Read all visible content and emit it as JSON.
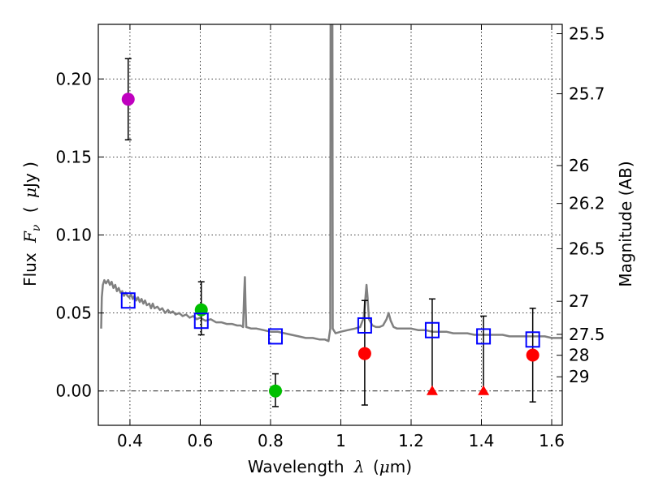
{
  "chart_data": {
    "type": "scatter",
    "xlabel_prefix": "Wavelength",
    "xlabel_symbol": "λ",
    "xlabel_unit_open": "(",
    "xlabel_unit_mu": "μ",
    "xlabel_unit_rest": "m)",
    "ylabel_prefix": "Flux",
    "ylabel_symbol": "F",
    "ylabel_subscript": "ν",
    "ylabel_unit_open": "(",
    "ylabel_unit_mu": "μ",
    "ylabel_unit_rest": "Jy )",
    "y2label": "Magnitude (AB)",
    "xlim": [
      0.31,
      1.63
    ],
    "ylim": [
      -0.022,
      0.235
    ],
    "xticks": [
      0.4,
      0.6,
      0.8,
      1.0,
      1.2,
      1.4,
      1.6
    ],
    "xtick_labels": [
      "0.4",
      "0.6",
      "0.8",
      "1",
      "1.2",
      "1.4",
      "1.6"
    ],
    "yticks": [
      0.0,
      0.05,
      0.1,
      0.15,
      0.2
    ],
    "ytick_labels": [
      "0.00",
      "0.05",
      "0.10",
      "0.15",
      "0.20"
    ],
    "y2ticks": [
      {
        "label": "25.5",
        "flux": 0.229
      },
      {
        "label": "25.7",
        "flux": 0.1905
      },
      {
        "label": "26",
        "flux": 0.1445
      },
      {
        "label": "26.2",
        "flux": 0.1202
      },
      {
        "label": "26.5",
        "flux": 0.0912
      },
      {
        "label": "27",
        "flux": 0.0575
      },
      {
        "label": "27.5",
        "flux": 0.0363
      },
      {
        "label": "28",
        "flux": 0.0229
      },
      {
        "label": "29",
        "flux": 0.0091
      }
    ],
    "model_spectrum": {
      "color": "#808080",
      "points": [
        [
          0.318,
          0.04
        ],
        [
          0.32,
          0.06
        ],
        [
          0.323,
          0.068
        ],
        [
          0.327,
          0.071
        ],
        [
          0.332,
          0.069
        ],
        [
          0.338,
          0.071
        ],
        [
          0.343,
          0.068
        ],
        [
          0.348,
          0.07
        ],
        [
          0.353,
          0.066
        ],
        [
          0.358,
          0.068
        ],
        [
          0.363,
          0.064
        ],
        [
          0.368,
          0.066
        ],
        [
          0.373,
          0.063
        ],
        [
          0.378,
          0.064
        ],
        [
          0.383,
          0.061
        ],
        [
          0.388,
          0.063
        ],
        [
          0.393,
          0.061
        ],
        [
          0.398,
          0.06
        ],
        [
          0.403,
          0.062
        ],
        [
          0.408,
          0.059
        ],
        [
          0.413,
          0.061
        ],
        [
          0.418,
          0.058
        ],
        [
          0.423,
          0.06
        ],
        [
          0.428,
          0.057
        ],
        [
          0.433,
          0.059
        ],
        [
          0.438,
          0.056
        ],
        [
          0.443,
          0.058
        ],
        [
          0.448,
          0.055
        ],
        [
          0.455,
          0.056
        ],
        [
          0.46,
          0.053
        ],
        [
          0.465,
          0.056
        ],
        [
          0.47,
          0.053
        ],
        [
          0.478,
          0.054
        ],
        [
          0.485,
          0.052
        ],
        [
          0.492,
          0.053
        ],
        [
          0.5,
          0.05
        ],
        [
          0.508,
          0.052
        ],
        [
          0.515,
          0.05
        ],
        [
          0.522,
          0.051
        ],
        [
          0.53,
          0.049
        ],
        [
          0.54,
          0.05
        ],
        [
          0.55,
          0.048
        ],
        [
          0.56,
          0.049
        ],
        [
          0.57,
          0.047
        ],
        [
          0.58,
          0.048
        ],
        [
          0.59,
          0.046
        ],
        [
          0.6,
          0.047
        ],
        [
          0.615,
          0.045
        ],
        [
          0.63,
          0.046
        ],
        [
          0.645,
          0.044
        ],
        [
          0.66,
          0.044
        ],
        [
          0.675,
          0.043
        ],
        [
          0.69,
          0.043
        ],
        [
          0.705,
          0.042
        ],
        [
          0.715,
          0.042
        ],
        [
          0.722,
          0.041
        ],
        [
          0.725,
          0.062
        ],
        [
          0.727,
          0.073
        ],
        [
          0.729,
          0.055
        ],
        [
          0.731,
          0.041
        ],
        [
          0.745,
          0.04
        ],
        [
          0.76,
          0.04
        ],
        [
          0.78,
          0.039
        ],
        [
          0.8,
          0.038
        ],
        [
          0.82,
          0.038
        ],
        [
          0.84,
          0.037
        ],
        [
          0.86,
          0.036
        ],
        [
          0.88,
          0.035
        ],
        [
          0.9,
          0.034
        ],
        [
          0.92,
          0.034
        ],
        [
          0.94,
          0.033
        ],
        [
          0.955,
          0.033
        ],
        [
          0.965,
          0.032
        ],
        [
          0.97,
          0.04
        ],
        [
          0.971,
          0.24
        ],
        [
          0.976,
          0.24
        ],
        [
          0.977,
          0.04
        ],
        [
          0.985,
          0.037
        ],
        [
          1.0,
          0.038
        ],
        [
          1.02,
          0.039
        ],
        [
          1.04,
          0.04
        ],
        [
          1.055,
          0.041
        ],
        [
          1.065,
          0.047
        ],
        [
          1.07,
          0.06
        ],
        [
          1.073,
          0.068
        ],
        [
          1.076,
          0.06
        ],
        [
          1.08,
          0.046
        ],
        [
          1.09,
          0.042
        ],
        [
          1.1,
          0.041
        ],
        [
          1.11,
          0.041
        ],
        [
          1.12,
          0.042
        ],
        [
          1.13,
          0.046
        ],
        [
          1.136,
          0.05
        ],
        [
          1.142,
          0.045
        ],
        [
          1.15,
          0.041
        ],
        [
          1.16,
          0.04
        ],
        [
          1.18,
          0.04
        ],
        [
          1.2,
          0.04
        ],
        [
          1.22,
          0.039
        ],
        [
          1.24,
          0.039
        ],
        [
          1.26,
          0.038
        ],
        [
          1.28,
          0.038
        ],
        [
          1.3,
          0.038
        ],
        [
          1.32,
          0.037
        ],
        [
          1.34,
          0.037
        ],
        [
          1.36,
          0.037
        ],
        [
          1.38,
          0.036
        ],
        [
          1.4,
          0.036
        ],
        [
          1.42,
          0.036
        ],
        [
          1.44,
          0.036
        ],
        [
          1.46,
          0.036
        ],
        [
          1.48,
          0.035
        ],
        [
          1.5,
          0.035
        ],
        [
          1.52,
          0.035
        ],
        [
          1.54,
          0.035
        ],
        [
          1.56,
          0.035
        ],
        [
          1.58,
          0.035
        ],
        [
          1.6,
          0.034
        ],
        [
          1.62,
          0.034
        ],
        [
          1.63,
          0.034
        ]
      ]
    },
    "series": [
      {
        "name": "observed-violet",
        "marker": "circle",
        "color": "#bf00bf",
        "points": [
          {
            "x": 0.395,
            "y": 0.187,
            "yerr_low": 0.161,
            "yerr_high": 0.213
          }
        ]
      },
      {
        "name": "observed-green",
        "marker": "circle",
        "color": "#00bf00",
        "points": [
          {
            "x": 0.603,
            "y": 0.052,
            "yerr_low": 0.036,
            "yerr_high": 0.07
          },
          {
            "x": 0.814,
            "y": 0.0,
            "yerr_low": -0.01,
            "yerr_high": 0.011
          }
        ]
      },
      {
        "name": "observed-red",
        "marker": "circle",
        "color": "#ff0000",
        "points": [
          {
            "x": 1.068,
            "y": 0.024,
            "yerr_low": -0.009,
            "yerr_high": 0.058
          },
          {
            "x": 1.546,
            "y": 0.023,
            "yerr_low": -0.007,
            "yerr_high": 0.053
          }
        ]
      },
      {
        "name": "upper-limit-red",
        "marker": "triangle",
        "color": "#ff0000",
        "points": [
          {
            "x": 1.26,
            "y": 0.0,
            "yerr_low": 0.0,
            "yerr_high": 0.059
          },
          {
            "x": 1.406,
            "y": 0.0,
            "yerr_low": 0.0,
            "yerr_high": 0.048
          }
        ]
      },
      {
        "name": "model-photometry",
        "marker": "square-open",
        "color": "#0000ff",
        "points": [
          {
            "x": 0.395,
            "y": 0.058
          },
          {
            "x": 0.603,
            "y": 0.045
          },
          {
            "x": 0.814,
            "y": 0.035
          },
          {
            "x": 1.068,
            "y": 0.042
          },
          {
            "x": 1.26,
            "y": 0.039
          },
          {
            "x": 1.406,
            "y": 0.035
          },
          {
            "x": 1.546,
            "y": 0.033
          }
        ]
      }
    ]
  }
}
